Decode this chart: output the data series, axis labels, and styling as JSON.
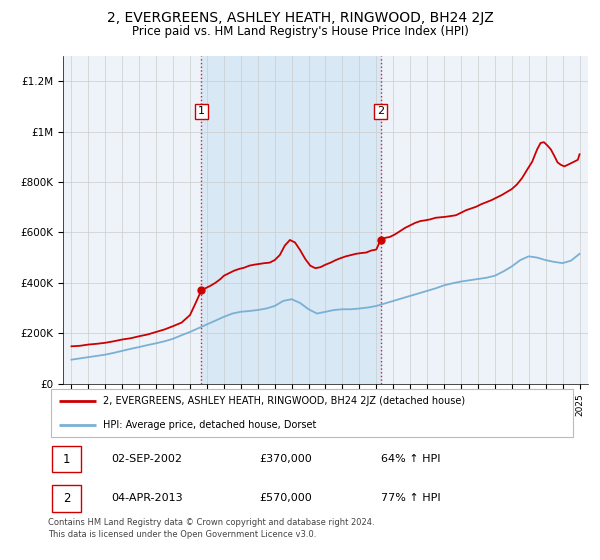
{
  "title": "2, EVERGREENS, ASHLEY HEATH, RINGWOOD, BH24 2JZ",
  "subtitle": "Price paid vs. HM Land Registry's House Price Index (HPI)",
  "title_fontsize": 10,
  "subtitle_fontsize": 8.5,
  "property_color": "#cc0000",
  "hpi_color": "#7ab0d4",
  "background_color": "#ffffff",
  "plot_bg_color": "#eef3fa",
  "shaded_region_color": "#d8e8f5",
  "grid_color": "#cccccc",
  "ylim": [
    0,
    1300000
  ],
  "yticks": [
    0,
    200000,
    400000,
    600000,
    800000,
    1000000,
    1200000
  ],
  "ytick_labels": [
    "£0",
    "£200K",
    "£400K",
    "£600K",
    "£800K",
    "£1M",
    "£1.2M"
  ],
  "sale1_x": 2002.67,
  "sale1_y": 370000,
  "sale1_label": "1",
  "sale1_date": "02-SEP-2002",
  "sale1_price": "£370,000",
  "sale1_hpi": "64% ↑ HPI",
  "sale2_x": 2013.25,
  "sale2_y": 570000,
  "sale2_label": "2",
  "sale2_date": "04-APR-2013",
  "sale2_price": "£570,000",
  "sale2_hpi": "77% ↑ HPI",
  "legend_property": "2, EVERGREENS, ASHLEY HEATH, RINGWOOD, BH24 2JZ (detached house)",
  "legend_hpi": "HPI: Average price, detached house, Dorset",
  "footer": "Contains HM Land Registry data © Crown copyright and database right 2024.\nThis data is licensed under the Open Government Licence v3.0.",
  "xmin": 1994.5,
  "xmax": 2025.5
}
